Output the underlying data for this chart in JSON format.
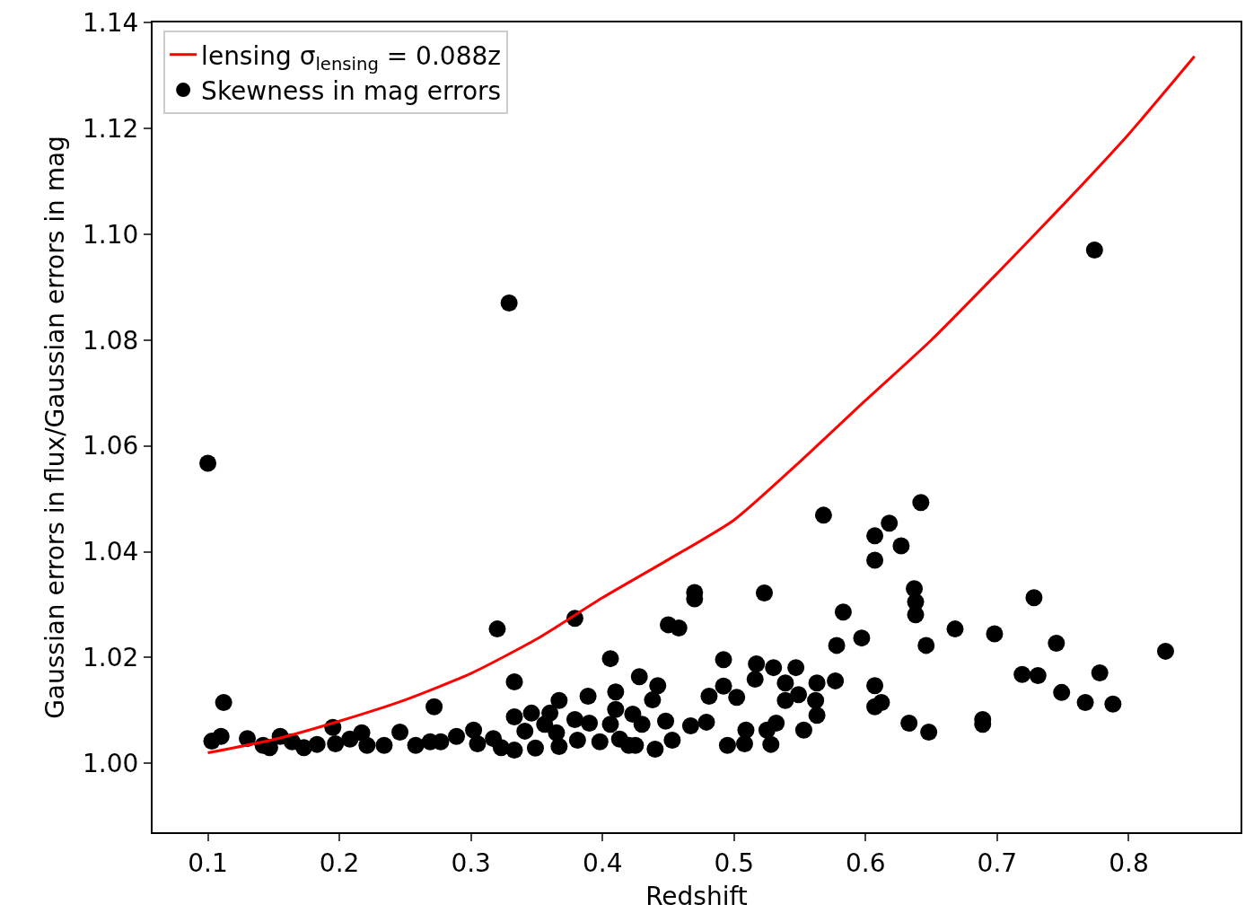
{
  "chart_data": {
    "type": "scatter",
    "xlabel": "Redshift",
    "ylabel": "Gaussian errors in flux/Gaussian errors in mag",
    "xlim": [
      0.058,
      0.885
    ],
    "ylim": [
      0.987,
      1.14
    ],
    "xticks": [
      0.1,
      0.2,
      0.3,
      0.4,
      0.5,
      0.6,
      0.7,
      0.8
    ],
    "yticks": [
      {
        "value": 1,
        "label": "1.00"
      },
      {
        "value": 1.02,
        "label": "1.02"
      },
      {
        "value": 1.04,
        "label": "1.04"
      },
      {
        "value": 1.06,
        "label": "1.06"
      },
      {
        "value": 1.08,
        "label": "1.08"
      },
      {
        "value": 1.1,
        "label": "1.10"
      },
      {
        "value": 1.12,
        "label": "1.12"
      },
      {
        "value": 1.14,
        "label": "1.14"
      }
    ],
    "grid": false,
    "legend": "top left",
    "series": [
      {
        "name": "lensing σ$_{lensing}$ = 0.088z",
        "type": "line",
        "marker": "none",
        "color": "#ff0000",
        "x": [
          0.1,
          0.15,
          0.2,
          0.25,
          0.3,
          0.35,
          0.4,
          0.45,
          0.5,
          0.55,
          0.6,
          0.65,
          0.7,
          0.75,
          0.8,
          0.85
        ],
        "values": [
          1.002,
          1.0045,
          1.008,
          1.012,
          1.017,
          1.0235,
          1.0313,
          1.0385,
          1.046,
          1.057,
          1.0686,
          1.08,
          1.0926,
          1.1055,
          1.1189,
          1.1336
        ]
      },
      {
        "name": "Skewness in mag errors",
        "marker": "circle",
        "color": "#000000",
        "x": [
          0.1,
          0.112,
          0.329,
          0.774,
          0.32,
          0.379,
          0.333,
          0.272,
          0.406,
          0.41,
          0.428,
          0.442,
          0.438,
          0.389,
          0.367,
          0.45,
          0.458,
          0.47,
          0.47,
          0.492,
          0.481,
          0.502,
          0.492,
          0.523,
          0.517,
          0.516,
          0.53,
          0.547,
          0.539,
          0.539,
          0.549,
          0.563,
          0.562,
          0.563,
          0.553,
          0.532,
          0.525,
          0.528,
          0.509,
          0.508,
          0.495,
          0.479,
          0.467,
          0.568,
          0.578,
          0.583,
          0.577,
          0.597,
          0.607,
          0.607,
          0.618,
          0.627,
          0.642,
          0.637,
          0.638,
          0.638,
          0.646,
          0.607,
          0.607,
          0.612,
          0.633,
          0.648,
          0.668,
          0.698,
          0.689,
          0.689,
          0.728,
          0.719,
          0.731,
          0.745,
          0.749,
          0.767,
          0.778,
          0.788,
          0.828,
          0.103,
          0.11,
          0.13,
          0.142,
          0.147,
          0.155,
          0.164,
          0.173,
          0.183,
          0.195,
          0.197,
          0.208,
          0.217,
          0.221,
          0.234,
          0.246,
          0.258,
          0.269,
          0.277,
          0.289,
          0.302,
          0.305,
          0.317,
          0.323,
          0.333,
          0.333,
          0.341,
          0.346,
          0.349,
          0.356,
          0.36,
          0.365,
          0.367,
          0.379,
          0.381,
          0.39,
          0.398,
          0.406,
          0.41,
          0.413,
          0.42,
          0.423,
          0.425,
          0.43,
          0.44,
          0.448,
          0.453
        ],
        "values": [
          1.0567,
          1.0115,
          1.087,
          1.097,
          1.0254,
          1.0274,
          1.0154,
          1.0107,
          1.0198,
          1.0135,
          1.0164,
          1.0147,
          1.012,
          1.0127,
          1.0119,
          1.0262,
          1.0256,
          1.0323,
          1.0311,
          1.0196,
          1.0127,
          1.0125,
          1.0146,
          1.0322,
          1.0188,
          1.0159,
          1.0181,
          1.0181,
          1.0152,
          1.0119,
          1.013,
          1.0152,
          1.0119,
          1.0091,
          1.0063,
          1.0076,
          1.0063,
          1.0036,
          1.0063,
          1.0037,
          1.0034,
          1.0078,
          1.0071,
          1.0469,
          1.0223,
          1.0286,
          1.0156,
          1.0237,
          1.043,
          1.0384,
          1.0454,
          1.0411,
          1.0493,
          1.033,
          1.0305,
          1.0281,
          1.0223,
          1.0147,
          1.0107,
          1.0115,
          1.0076,
          1.0059,
          1.0254,
          1.0245,
          1.0083,
          1.0074,
          1.0313,
          1.0168,
          1.0166,
          1.0227,
          1.0134,
          1.0115,
          1.0171,
          1.0112,
          1.0212,
          1.0042,
          1.0051,
          1.0047,
          1.0034,
          1.003,
          1.0051,
          1.0041,
          1.003,
          1.0036,
          1.0068,
          1.0037,
          1.0046,
          1.0058,
          1.0034,
          1.0034,
          1.0059,
          1.0034,
          1.0041,
          1.0041,
          1.0051,
          1.0063,
          1.0037,
          1.0047,
          1.003,
          1.0025,
          1.0088,
          1.0061,
          1.0095,
          1.0029,
          1.0074,
          1.0095,
          1.0058,
          1.0032,
          1.0083,
          1.0044,
          1.0076,
          1.0041,
          1.0074,
          1.0102,
          1.0046,
          1.0034,
          1.0093,
          1.0034,
          1.0074,
          1.0027,
          1.008,
          1.0044
        ]
      }
    ]
  }
}
